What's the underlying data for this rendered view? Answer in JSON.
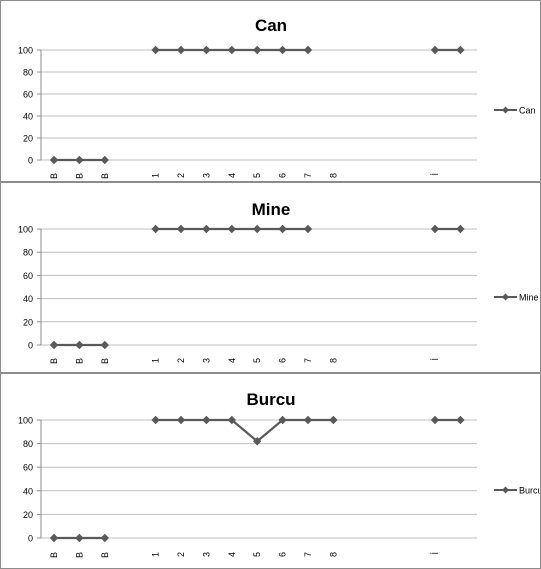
{
  "chart_data": [
    {
      "type": "line",
      "title": "Can",
      "categories": [
        "B",
        "B",
        "B",
        "",
        "1",
        "2",
        "3",
        "4",
        "5",
        "6",
        "7",
        "8",
        "",
        "",
        "",
        "İ",
        ""
      ],
      "series": [
        {
          "name": "Can",
          "values": [
            0,
            0,
            0,
            null,
            100,
            100,
            100,
            100,
            100,
            100,
            100,
            null,
            null,
            null,
            null,
            100,
            100
          ]
        }
      ],
      "ylim": [
        0,
        100
      ],
      "yticks": [
        0,
        20,
        40,
        60,
        80,
        100
      ],
      "grid": true,
      "legend": "right",
      "color": "#595959"
    },
    {
      "type": "line",
      "title": "Mine",
      "categories": [
        "B",
        "B",
        "B",
        "",
        "1",
        "2",
        "3",
        "4",
        "5",
        "6",
        "7",
        "8",
        "",
        "",
        "",
        "İ",
        ""
      ],
      "series": [
        {
          "name": "Mine",
          "values": [
            0,
            0,
            0,
            null,
            100,
            100,
            100,
            100,
            100,
            100,
            100,
            null,
            null,
            null,
            null,
            100,
            100
          ]
        }
      ],
      "ylim": [
        0,
        100
      ],
      "yticks": [
        0,
        20,
        40,
        60,
        80,
        100
      ],
      "grid": true,
      "legend": "right",
      "color": "#595959"
    },
    {
      "type": "line",
      "title": "Burcu",
      "categories": [
        "B",
        "B",
        "B",
        "",
        "1",
        "2",
        "3",
        "4",
        "5",
        "6",
        "7",
        "8",
        "",
        "",
        "",
        "İ",
        ""
      ],
      "series": [
        {
          "name": "Burcu",
          "values": [
            0,
            0,
            0,
            null,
            100,
            100,
            100,
            100,
            82,
            100,
            100,
            100,
            null,
            null,
            null,
            100,
            100
          ]
        }
      ],
      "ylim": [
        0,
        100
      ],
      "yticks": [
        0,
        20,
        40,
        60,
        80,
        100
      ],
      "grid": true,
      "legend": "right",
      "color": "#595959"
    }
  ]
}
